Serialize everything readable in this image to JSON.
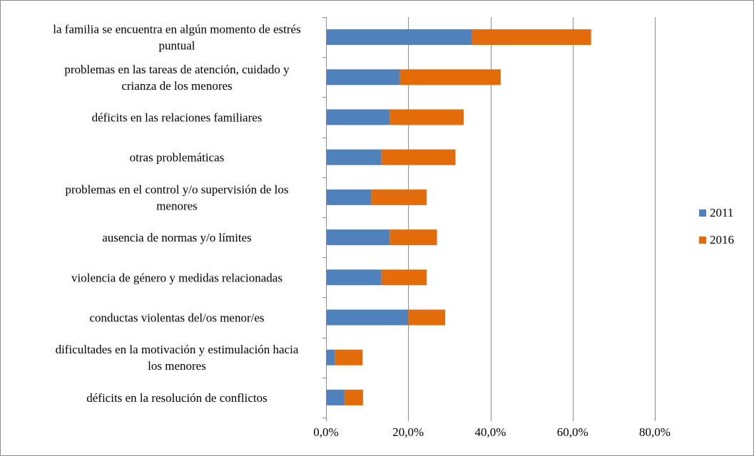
{
  "chart_data": {
    "type": "bar",
    "orientation": "horizontal",
    "stacked": true,
    "title": "",
    "xlabel": "",
    "ylabel": "",
    "xlim": [
      0,
      80
    ],
    "x_ticks": [
      0,
      20,
      40,
      60,
      80
    ],
    "x_tick_labels": [
      "0,0%",
      "20,0%",
      "40,0%",
      "60,0%",
      "80,0%"
    ],
    "grid": true,
    "legend_position": "right",
    "categories": [
      [
        "la familia se encuentra en algún momento de estrés",
        "puntual"
      ],
      [
        "problemas en las tareas de atención, cuidado y",
        "crianza de los menores"
      ],
      [
        "déficits en las relaciones familiares"
      ],
      [
        "otras problemáticas"
      ],
      [
        "problemas en el control y/o supervisión de los",
        "menores"
      ],
      [
        "ausencia de normas y/o límites"
      ],
      [
        "violencia de género y medidas relacionadas"
      ],
      [
        "conductas violentas del/os menor/es"
      ],
      [
        "dificultades en la motivación y estimulación hacia",
        "los menores"
      ],
      [
        "déficits en la resolución de conflictos"
      ]
    ],
    "series": [
      {
        "name": "2011",
        "color": "#4f81bd",
        "values": [
          35.5,
          18.0,
          15.5,
          13.5,
          11.0,
          15.5,
          13.5,
          20.0,
          2.2,
          4.5
        ]
      },
      {
        "name": "2016",
        "color": "#e36c09",
        "values": [
          29.0,
          24.5,
          18.0,
          18.0,
          13.5,
          11.5,
          11.0,
          9.0,
          6.7,
          4.5
        ]
      }
    ]
  }
}
